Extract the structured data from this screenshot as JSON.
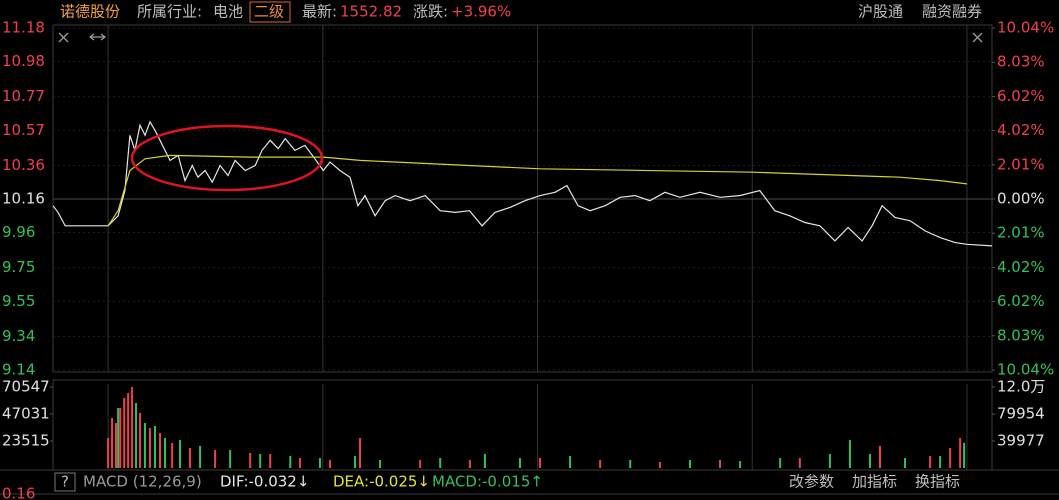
{
  "header": {
    "name": "诺德股份",
    "industry_label": "所属行业:",
    "industry": "电池",
    "level": "二级",
    "latest_label": "最新:",
    "latest": "1552.82",
    "change_label": "涨跌:",
    "change": "+3.96%",
    "tags": [
      "沪股通",
      "融资融券"
    ]
  },
  "chart_data": [
    {
      "type": "line",
      "xlim": [
        -15.4,
        247
      ],
      "xticks": [
        0,
        60,
        120,
        180,
        240
      ],
      "ylim": [
        9.14,
        11.18
      ],
      "yticks": [
        11.18,
        10.98,
        10.77,
        10.57,
        10.36,
        10.16,
        9.96,
        9.75,
        9.55,
        9.34,
        9.14
      ],
      "y2lim": [
        -10.04,
        10.04
      ],
      "y2ticks": [
        {
          "value": 10.04,
          "label": "10.04%"
        },
        {
          "value": 8.03,
          "label": "8.03%"
        },
        {
          "value": 6.02,
          "label": "6.02%"
        },
        {
          "value": 4.02,
          "label": "4.02%"
        },
        {
          "value": 2.01,
          "label": "2.01%"
        },
        {
          "value": 0,
          "label": "0.00%"
        },
        {
          "value": -2.01,
          "label": "2.01%"
        },
        {
          "value": -4.02,
          "label": "4.02%"
        },
        {
          "value": -6.02,
          "label": "6.02%"
        },
        {
          "value": -8.03,
          "label": "8.03%"
        },
        {
          "value": -10.04,
          "label": "10.04%"
        }
      ],
      "grid": true,
      "up_color": "#f0404c",
      "down_color": "#2fc25b",
      "series": [
        {
          "color": "#e6e6e6",
          "x": [
            -15.4,
            -14,
            -12,
            0,
            2.8,
            4.7,
            6.1,
            7.5,
            8.9,
            10.3,
            11.7,
            13.1,
            14.5,
            15.9,
            17.3,
            19.6,
            21.5,
            23.5,
            25.1,
            27.1,
            29.1,
            31.3,
            33.5,
            35.5,
            38.3,
            41.1,
            43,
            45.3,
            47.5,
            49.5,
            52.2,
            55,
            57.8,
            60.1,
            62,
            64.8,
            67.6,
            69.8,
            71.8,
            74.6,
            77.4,
            80.2,
            84.4,
            88.6,
            92.8,
            97,
            101,
            104.5,
            108.1,
            112.3,
            116.5,
            120.7,
            124.9,
            128.2,
            131.3,
            134.7,
            138.9,
            143.1,
            147.3,
            151.4,
            155.6,
            159.8,
            165.4,
            171,
            176.5,
            182.1,
            186.3,
            190.5,
            194.7,
            198.9,
            203.1,
            206.8,
            210.7,
            213.5,
            216.3,
            219.9,
            224.1,
            228.3,
            232.5,
            236.7,
            240,
            247
          ],
          "values": [
            10.12,
            10.08,
            10,
            10,
            10.06,
            10.21,
            10.54,
            10.45,
            10.6,
            10.54,
            10.62,
            10.57,
            10.51,
            10.45,
            10.39,
            10.42,
            10.27,
            10.36,
            10.29,
            10.33,
            10.26,
            10.36,
            10.3,
            10.39,
            10.33,
            10.36,
            10.45,
            10.51,
            10.46,
            10.52,
            10.45,
            10.48,
            10.4,
            10.33,
            10.38,
            10.33,
            10.29,
            10.12,
            10.18,
            10.06,
            10.15,
            10.18,
            10.15,
            10.18,
            10.09,
            10.08,
            10.09,
            10,
            10.08,
            10.11,
            10.15,
            10.18,
            10.2,
            10.24,
            10.12,
            10.09,
            10.12,
            10.17,
            10.18,
            10.15,
            10.2,
            10.17,
            10.2,
            10.17,
            10.18,
            10.21,
            10.09,
            10.06,
            10.02,
            10,
            9.91,
            9.99,
            9.91,
            10,
            10.12,
            10.05,
            10.03,
            9.97,
            9.93,
            9.9,
            9.89,
            9.88
          ]
        },
        {
          "color": "#d4d42a",
          "x": [
            0,
            2.8,
            6.1,
            10.3,
            17.3,
            39.7,
            60.1,
            70.4,
            120.7,
            180.2,
            221.3,
            232.5,
            240
          ],
          "values": [
            10,
            10.09,
            10.33,
            10.4,
            10.42,
            10.41,
            10.41,
            10.39,
            10.34,
            10.32,
            10.29,
            10.27,
            10.25
          ]
        }
      ]
    },
    {
      "type": "bar",
      "xlim": [
        -15.4,
        247
      ],
      "xticks": [
        0,
        60,
        120,
        180,
        240
      ],
      "ylim": [
        0,
        70547
      ],
      "yticks": [
        70547,
        47031,
        23515
      ],
      "y2lim": [
        0,
        120000
      ],
      "y2ticks": [
        {
          "value": 120000,
          "label": "12.0万"
        },
        79954,
        39977
      ],
      "series": [
        {
          "color": "#f0404c",
          "x": [
            0,
            1.1,
            2.2,
            3.4,
            4.5,
            5.6,
            6.7,
            8.9,
            11.7,
            14.5,
            17.9,
            22.9,
            29.9,
            39.7,
            45.3,
            53.6,
            62,
            70.4,
            87.2,
            101.1,
            120.7,
            137.5,
            154.2,
            171,
            193.3,
            215.7,
            229.7,
            235.3,
            238.1
          ],
          "values": [
            26129,
            43548,
            39193,
            52257,
            60967,
            65321,
            70547,
            47902,
            34838,
            30483,
            21774,
            17419,
            15677,
            13064,
            12193,
            8710,
            6968,
            26129,
            6968,
            6968,
            8710,
            6968,
            5226,
            6968,
            8710,
            19161,
            10451,
            17419,
            26129
          ]
        },
        {
          "color": "#2fc25b",
          "x": [
            2.8,
            7.8,
            10.3,
            13.1,
            15.9,
            20.1,
            25.7,
            34.1,
            42.5,
            50.9,
            59.2,
            69,
            76,
            92.8,
            105.3,
            115.1,
            129.1,
            145.9,
            162.6,
            176.6,
            187.8,
            201.7,
            207.3,
            212.9,
            222.7,
            232.5,
            239.2
          ],
          "values": [
            52257,
            56612,
            39193,
            36580,
            26129,
            24387,
            19161,
            15677,
            12193,
            10451,
            8710,
            10451,
            6968,
            8710,
            12193,
            8710,
            10451,
            6968,
            6968,
            6097,
            8710,
            12193,
            24387,
            12193,
            8710,
            10451,
            21774
          ]
        }
      ]
    }
  ],
  "macd_panel": {
    "help": "?",
    "name": "MACD (12,26,9)",
    "dif": "DIF:-0.032↓",
    "dea": "DEA:-0.025↓",
    "macd": "MACD:-0.015↑",
    "buttons": [
      "改参数",
      "加指标",
      "换指标"
    ],
    "scale": "0.16"
  }
}
